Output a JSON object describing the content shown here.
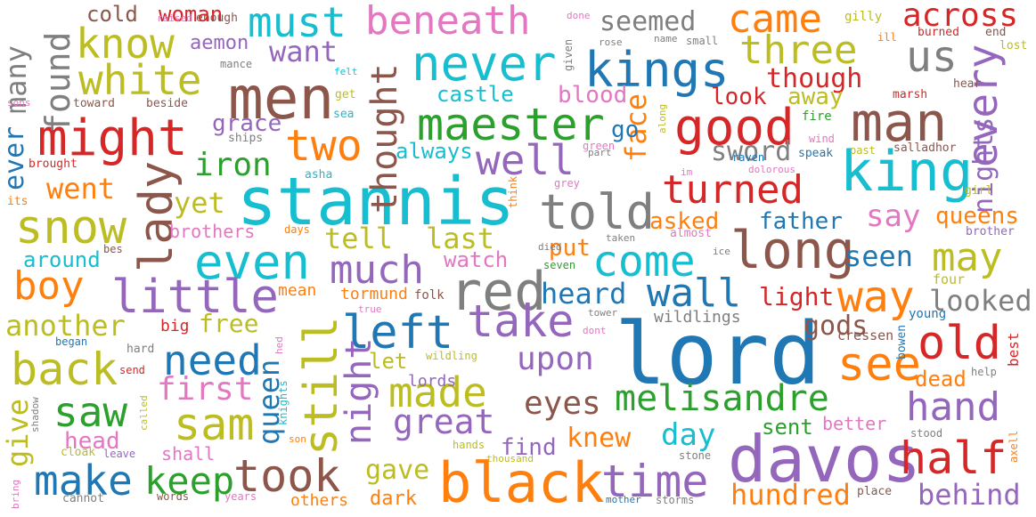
{
  "colors": {
    "blue": "#1f77b4",
    "orange": "#ff7f0e",
    "green": "#2ca02c",
    "red": "#d62728",
    "purple": "#9467bd",
    "brown": "#8c564b",
    "pink": "#e377c2",
    "gray": "#7f7f7f",
    "olive": "#bcbd22",
    "cyan": "#17becf"
  },
  "words": [
    {
      "text": "lord",
      "color": "blue"
    },
    {
      "text": "stannis",
      "color": "cyan"
    },
    {
      "text": "davos",
      "color": "purple"
    },
    {
      "text": "black",
      "color": "orange"
    },
    {
      "text": "men",
      "color": "brown"
    },
    {
      "text": "man",
      "color": "brown"
    },
    {
      "text": "king",
      "color": "cyan"
    },
    {
      "text": "kings",
      "color": "blue"
    },
    {
      "text": "long",
      "color": "brown"
    },
    {
      "text": "red",
      "color": "gray"
    },
    {
      "text": "maester",
      "color": "green"
    },
    {
      "text": "good",
      "color": "red"
    },
    {
      "text": "might",
      "color": "red"
    },
    {
      "text": "never",
      "color": "cyan"
    },
    {
      "text": "must",
      "color": "cyan"
    },
    {
      "text": "beneath",
      "color": "pink"
    },
    {
      "text": "came",
      "color": "orange"
    },
    {
      "text": "know",
      "color": "olive"
    },
    {
      "text": "white",
      "color": "olive"
    },
    {
      "text": "three",
      "color": "olive"
    },
    {
      "text": "us",
      "color": "gray"
    },
    {
      "text": "across",
      "color": "red"
    },
    {
      "text": "seemed",
      "color": "gray"
    },
    {
      "text": "well",
      "color": "purple"
    },
    {
      "text": "two",
      "color": "orange"
    },
    {
      "text": "told",
      "color": "gray"
    },
    {
      "text": "even",
      "color": "cyan"
    },
    {
      "text": "little",
      "color": "purple"
    },
    {
      "text": "come",
      "color": "cyan"
    },
    {
      "text": "turned",
      "color": "red"
    },
    {
      "text": "snow",
      "color": "olive"
    },
    {
      "text": "lady",
      "color": "brown"
    },
    {
      "text": "much",
      "color": "purple"
    },
    {
      "text": "left",
      "color": "blue"
    },
    {
      "text": "take",
      "color": "purple"
    },
    {
      "text": "wall",
      "color": "blue"
    },
    {
      "text": "way",
      "color": "orange"
    },
    {
      "text": "old",
      "color": "red"
    },
    {
      "text": "see",
      "color": "orange"
    },
    {
      "text": "still",
      "color": "olive"
    },
    {
      "text": "made",
      "color": "olive"
    },
    {
      "text": "melisandre",
      "color": "green"
    },
    {
      "text": "back",
      "color": "olive"
    },
    {
      "text": "need",
      "color": "blue"
    },
    {
      "text": "sam",
      "color": "olive"
    },
    {
      "text": "saw",
      "color": "green"
    },
    {
      "text": "took",
      "color": "brown"
    },
    {
      "text": "time",
      "color": "purple"
    },
    {
      "text": "half",
      "color": "red"
    },
    {
      "text": "hand",
      "color": "purple"
    },
    {
      "text": "make",
      "color": "blue"
    },
    {
      "text": "keep",
      "color": "green"
    },
    {
      "text": "boy",
      "color": "orange"
    },
    {
      "text": "every",
      "color": "purple"
    },
    {
      "text": "nights",
      "color": "purple"
    },
    {
      "text": "found",
      "color": "gray"
    },
    {
      "text": "many",
      "color": "gray"
    },
    {
      "text": "thought",
      "color": "brown"
    },
    {
      "text": "woman",
      "color": "red"
    },
    {
      "text": "cold",
      "color": "brown"
    },
    {
      "text": "aemon",
      "color": "purple"
    },
    {
      "text": "want",
      "color": "purple"
    },
    {
      "text": "castle",
      "color": "cyan"
    },
    {
      "text": "blood",
      "color": "pink"
    },
    {
      "text": "though",
      "color": "red"
    },
    {
      "text": "look",
      "color": "red"
    },
    {
      "text": "away",
      "color": "olive"
    },
    {
      "text": "iron",
      "color": "green"
    },
    {
      "text": "grace",
      "color": "purple"
    },
    {
      "text": "went",
      "color": "orange"
    },
    {
      "text": "ever",
      "color": "blue"
    },
    {
      "text": "sword",
      "color": "gray"
    },
    {
      "text": "face",
      "color": "orange"
    },
    {
      "text": "go",
      "color": "blue"
    },
    {
      "text": "always",
      "color": "cyan"
    },
    {
      "text": "yet",
      "color": "olive"
    },
    {
      "text": "tell",
      "color": "olive"
    },
    {
      "text": "last",
      "color": "olive"
    },
    {
      "text": "asked",
      "color": "orange"
    },
    {
      "text": "father",
      "color": "blue"
    },
    {
      "text": "say",
      "color": "pink"
    },
    {
      "text": "queens",
      "color": "orange"
    },
    {
      "text": "may",
      "color": "olive"
    },
    {
      "text": "seen",
      "color": "blue"
    },
    {
      "text": "brothers",
      "color": "pink"
    },
    {
      "text": "around",
      "color": "cyan"
    },
    {
      "text": "watch",
      "color": "pink"
    },
    {
      "text": "put",
      "color": "orange"
    },
    {
      "text": "heard",
      "color": "blue"
    },
    {
      "text": "light",
      "color": "red"
    },
    {
      "text": "looked",
      "color": "gray"
    },
    {
      "text": "another",
      "color": "olive"
    },
    {
      "text": "free",
      "color": "olive"
    },
    {
      "text": "gods",
      "color": "brown"
    },
    {
      "text": "mean",
      "color": "orange"
    },
    {
      "text": "tormund",
      "color": "orange"
    },
    {
      "text": "big",
      "color": "red"
    },
    {
      "text": "upon",
      "color": "purple"
    },
    {
      "text": "let",
      "color": "olive"
    },
    {
      "text": "first",
      "color": "pink"
    },
    {
      "text": "queen",
      "color": "blue"
    },
    {
      "text": "night",
      "color": "purple"
    },
    {
      "text": "great",
      "color": "purple"
    },
    {
      "text": "eyes",
      "color": "brown"
    },
    {
      "text": "day",
      "color": "cyan"
    },
    {
      "text": "knew",
      "color": "orange"
    },
    {
      "text": "find",
      "color": "purple"
    },
    {
      "text": "sent",
      "color": "green"
    },
    {
      "text": "better",
      "color": "pink"
    },
    {
      "text": "dead",
      "color": "orange"
    },
    {
      "text": "give",
      "color": "olive"
    },
    {
      "text": "head",
      "color": "pink"
    },
    {
      "text": "shall",
      "color": "pink"
    },
    {
      "text": "gave",
      "color": "olive"
    },
    {
      "text": "hundred",
      "color": "orange"
    },
    {
      "text": "behind",
      "color": "purple"
    },
    {
      "text": "dark",
      "color": "orange"
    },
    {
      "text": "others",
      "color": "orange"
    },
    {
      "text": "lords",
      "color": "purple"
    },
    {
      "text": "wildlings",
      "color": "gray"
    },
    {
      "text": "cressen",
      "color": "brown"
    },
    {
      "text": "best",
      "color": "red"
    },
    {
      "text": "four",
      "color": "olive"
    },
    {
      "text": "young",
      "color": "blue"
    },
    {
      "text": "bowen",
      "color": "blue"
    },
    {
      "text": "enough",
      "color": "brown"
    },
    {
      "text": "raised",
      "color": "pink"
    },
    {
      "text": "mance",
      "color": "gray"
    },
    {
      "text": "felt",
      "color": "cyan"
    },
    {
      "text": "get",
      "color": "olive"
    },
    {
      "text": "sea",
      "color": "cyan"
    },
    {
      "text": "toward",
      "color": "brown"
    },
    {
      "text": "beside",
      "color": "brown"
    },
    {
      "text": "sons",
      "color": "pink"
    },
    {
      "text": "ships",
      "color": "gray"
    },
    {
      "text": "brought",
      "color": "red"
    },
    {
      "text": "its",
      "color": "orange"
    },
    {
      "text": "asha",
      "color": "cyan"
    },
    {
      "text": "done",
      "color": "pink"
    },
    {
      "text": "given",
      "color": "gray"
    },
    {
      "text": "rose",
      "color": "gray"
    },
    {
      "text": "name",
      "color": "gray"
    },
    {
      "text": "small",
      "color": "gray"
    },
    {
      "text": "gilly",
      "color": "olive"
    },
    {
      "text": "ill",
      "color": "orange"
    },
    {
      "text": "burned",
      "color": "red"
    },
    {
      "text": "end",
      "color": "brown"
    },
    {
      "text": "lost",
      "color": "olive"
    },
    {
      "text": "marsh",
      "color": "red"
    },
    {
      "text": "hear",
      "color": "brown"
    },
    {
      "text": "fire",
      "color": "green"
    },
    {
      "text": "wind",
      "color": "pink"
    },
    {
      "text": "past",
      "color": "olive"
    },
    {
      "text": "salladhor",
      "color": "brown"
    },
    {
      "text": "speak",
      "color": "blue"
    },
    {
      "text": "raven",
      "color": "blue"
    },
    {
      "text": "green",
      "color": "pink"
    },
    {
      "text": "along",
      "color": "olive"
    },
    {
      "text": "im",
      "color": "pink"
    },
    {
      "text": "dolorous",
      "color": "pink"
    },
    {
      "text": "grey",
      "color": "pink"
    },
    {
      "text": "part",
      "color": "gray"
    },
    {
      "text": "girl",
      "color": "olive"
    },
    {
      "text": "brother",
      "color": "purple"
    },
    {
      "text": "think",
      "color": "orange"
    },
    {
      "text": "almost",
      "color": "pink"
    },
    {
      "text": "taken",
      "color": "gray"
    },
    {
      "text": "days",
      "color": "orange"
    },
    {
      "text": "bes",
      "color": "brown"
    },
    {
      "text": "seven",
      "color": "green"
    },
    {
      "text": "died",
      "color": "gray"
    },
    {
      "text": "ice",
      "color": "gray"
    },
    {
      "text": "folk",
      "color": "brown"
    },
    {
      "text": "true",
      "color": "pink"
    },
    {
      "text": "tower",
      "color": "gray"
    },
    {
      "text": "dont",
      "color": "pink"
    },
    {
      "text": "began",
      "color": "blue"
    },
    {
      "text": "hard",
      "color": "gray"
    },
    {
      "text": "hed",
      "color": "pink"
    },
    {
      "text": "send",
      "color": "red"
    },
    {
      "text": "shadow",
      "color": "gray"
    },
    {
      "text": "called",
      "color": "olive"
    },
    {
      "text": "knights",
      "color": "cyan"
    },
    {
      "text": "wildling",
      "color": "olive"
    },
    {
      "text": "help",
      "color": "gray"
    },
    {
      "text": "stood",
      "color": "gray"
    },
    {
      "text": "axell",
      "color": "orange"
    },
    {
      "text": "cloak",
      "color": "olive"
    },
    {
      "text": "leave",
      "color": "purple"
    },
    {
      "text": "son",
      "color": "orange"
    },
    {
      "text": "hands",
      "color": "olive"
    },
    {
      "text": "stone",
      "color": "gray"
    },
    {
      "text": "thousand",
      "color": "olive"
    },
    {
      "text": "bring",
      "color": "pink"
    },
    {
      "text": "cannot",
      "color": "gray"
    },
    {
      "text": "words",
      "color": "brown"
    },
    {
      "text": "years",
      "color": "pink"
    },
    {
      "text": "mother",
      "color": "blue"
    },
    {
      "text": "storms",
      "color": "gray"
    },
    {
      "text": "place",
      "color": "brown"
    }
  ]
}
